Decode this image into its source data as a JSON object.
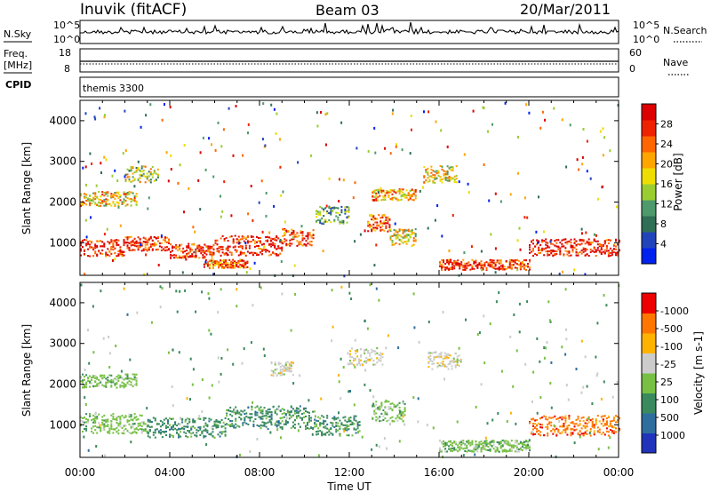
{
  "header": {
    "station": "Inuvik (fitACF)",
    "beam": "Beam 03",
    "date": "20/Mar/2011"
  },
  "noise_panel": {
    "left_label": "N.Sky",
    "right_label": "N.Search",
    "tick_top": "10^5",
    "tick_bottom": "10^0"
  },
  "freq_panel": {
    "left_label_line1": "Freq.",
    "left_label_line2": "[MHz]",
    "left_ticks": [
      "18",
      "8"
    ],
    "right_label": "Nave",
    "right_ticks": [
      "60",
      "0"
    ]
  },
  "cpid_panel": {
    "label": "CPID",
    "program": "themis 3300"
  },
  "chart_data": [
    {
      "type": "heatmap",
      "panel": "power",
      "ylabel": "Slant Range [km]",
      "ylim": [
        200,
        4500
      ],
      "yticks": [
        1000,
        2000,
        3000,
        4000
      ],
      "colorbar": {
        "label": "Power [dB]",
        "range": [
          0,
          32
        ],
        "ticks": [
          "4",
          "8",
          "12",
          "16",
          "20",
          "24",
          "28"
        ],
        "colors": [
          "#0022ee",
          "#2244bb",
          "#2f6f55",
          "#4e9a6c",
          "#9acd32",
          "#eedd00",
          "#ffa500",
          "#ff6600",
          "#ee2200",
          "#dd0000"
        ]
      },
      "main_echo_bands": [
        {
          "t0": 0.0,
          "t1": 2.0,
          "r": 900,
          "h": 300,
          "level": 0.9
        },
        {
          "t0": 2.0,
          "t1": 4.0,
          "r": 1000,
          "h": 250,
          "level": 0.85
        },
        {
          "t0": 4.0,
          "t1": 6.0,
          "r": 820,
          "h": 250,
          "level": 0.85
        },
        {
          "t0": 6.0,
          "t1": 9.0,
          "r": 950,
          "h": 350,
          "level": 0.9
        },
        {
          "t0": 9.0,
          "t1": 10.4,
          "r": 1150,
          "h": 300,
          "level": 0.85
        },
        {
          "t0": 10.5,
          "t1": 12.0,
          "r": 1700,
          "h": 300,
          "level": 0.35
        },
        {
          "t0": 12.8,
          "t1": 13.8,
          "r": 1500,
          "h": 300,
          "level": 0.75
        },
        {
          "t0": 13.8,
          "t1": 15.0,
          "r": 1150,
          "h": 300,
          "level": 0.55
        },
        {
          "t0": 16.0,
          "t1": 20.0,
          "r": 480,
          "h": 180,
          "level": 0.85
        },
        {
          "t0": 20.0,
          "t1": 24.0,
          "r": 900,
          "h": 300,
          "level": 0.9
        },
        {
          "t0": 0.0,
          "t1": 2.5,
          "r": 2100,
          "h": 250,
          "level": 0.6
        },
        {
          "t0": 2.0,
          "t1": 3.5,
          "r": 2700,
          "h": 300,
          "level": 0.5
        },
        {
          "t0": 5.5,
          "t1": 7.5,
          "r": 500,
          "h": 150,
          "level": 0.8
        },
        {
          "t0": 13.0,
          "t1": 15.0,
          "r": 2200,
          "h": 200,
          "level": 0.65
        },
        {
          "t0": 15.3,
          "t1": 16.8,
          "r": 2700,
          "h": 300,
          "level": 0.55
        }
      ]
    },
    {
      "type": "heatmap",
      "panel": "velocity",
      "ylabel": "Slant Range [km]",
      "ylim": [
        200,
        4500
      ],
      "yticks": [
        1000,
        2000,
        3000,
        4000
      ],
      "xlabel": "Time UT",
      "xticks": [
        "00:00",
        "04:00",
        "08:00",
        "12:00",
        "16:00",
        "20:00",
        "00:00"
      ],
      "colorbar": {
        "label": "Velocity [m s-1]",
        "ticks": [
          "1000",
          "500",
          "100",
          "25",
          "-25",
          "-100",
          "-500",
          "-1000"
        ],
        "colors": [
          "#2233bb",
          "#2e6e9e",
          "#3a8a5e",
          "#77c044",
          "#cccccc",
          "#ffb300",
          "#ff7700",
          "#ee0000"
        ]
      },
      "main_echo_bands": [
        {
          "t0": 0.0,
          "t1": 3.0,
          "r": 1050,
          "h": 350,
          "class": "green_light"
        },
        {
          "t0": 3.0,
          "t1": 6.5,
          "r": 950,
          "h": 350,
          "class": "green_dark"
        },
        {
          "t0": 6.5,
          "t1": 10.5,
          "r": 1200,
          "h": 400,
          "class": "green_dark"
        },
        {
          "t0": 10.5,
          "t1": 12.5,
          "r": 1000,
          "h": 350,
          "class": "green_dark"
        },
        {
          "t0": 13.0,
          "t1": 14.5,
          "r": 1350,
          "h": 350,
          "class": "green_light"
        },
        {
          "t0": 12.0,
          "t1": 13.5,
          "r": 2700,
          "h": 300,
          "class": "gray"
        },
        {
          "t0": 15.5,
          "t1": 17.0,
          "r": 2600,
          "h": 300,
          "class": "gray"
        },
        {
          "t0": 16.0,
          "t1": 20.0,
          "r": 500,
          "h": 200,
          "class": "green_light"
        },
        {
          "t0": 20.0,
          "t1": 24.0,
          "r": 1000,
          "h": 350,
          "class": "orange"
        },
        {
          "t0": 0.0,
          "t1": 2.5,
          "r": 2100,
          "h": 250,
          "class": "green_light"
        },
        {
          "t0": 8.5,
          "t1": 9.5,
          "r": 2400,
          "h": 250,
          "class": "gray"
        }
      ]
    }
  ]
}
